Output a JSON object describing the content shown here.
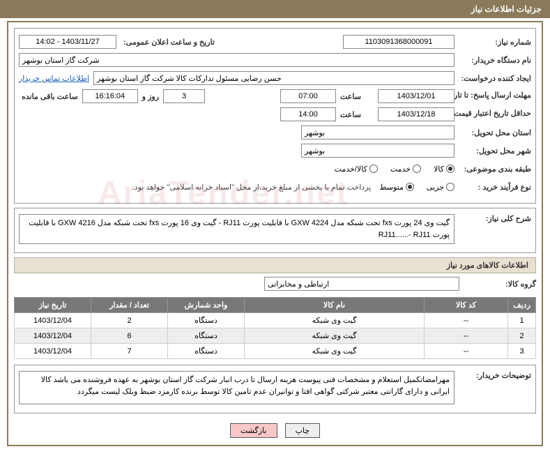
{
  "header": "جزئیات اطلاعات نیاز",
  "labels": {
    "req_no": "شماره نیاز:",
    "announce": "تاریخ و ساعت اعلان عمومی:",
    "buyer_org": "نام دستگاه خریدار:",
    "requester": "ایجاد کننده درخواست:",
    "contact_link": "اطلاعات تماس خریدار",
    "reply_deadline": "مهلت ارسال پاسخ: تا تاریخ:",
    "hour": "ساعت",
    "days_and": "روز و",
    "remaining": "ساعت باقی مانده",
    "price_valid": "حداقل تاریخ اعتبار قیمت: تا تاریخ:",
    "delivery_province": "استان محل تحویل:",
    "delivery_city": "شهر محل تحویل:",
    "subject_class": "طبقه بندی موضوعی:",
    "purchase_type": "نوع فرآیند خرید :",
    "general_desc": "شرح کلی نیاز:",
    "items_section": "اطلاعات کالاهای مورد نیاز",
    "goods_group": "گروه کالا:",
    "buyer_notes": "توضیحات خریدار:"
  },
  "values": {
    "req_no": "1103091368000091",
    "announce": "1403/11/27 - 14:02",
    "buyer_org": "شرکت گاز استان بوشهر",
    "requester": "حسن رضایی مسئول تدارکات کالا شرکت گاز استان بوشهر",
    "reply_date": "1403/12/01",
    "reply_time": "07:00",
    "days_left": "3",
    "time_left": "16:16:04",
    "price_date": "1403/12/18",
    "price_time": "14:00",
    "province": "بوشهر",
    "city": "بوشهر",
    "payment_note": "پرداخت تمام یا بخشی از مبلغ خرید،از محل \"اسناد خزانه اسلامی\" خواهد بود.",
    "general_desc": "گیت وی 24  پورت fxs  تحت شبکه مدل GXW 4224 با قابلیت پورت RJ11 - گیت وی 16  پورت fxs  تحت شبکه مدل GXW 4216 با قابلیت پورت RJ11......-   RJ11",
    "goods_group": "ارتباطی و مخابراتی",
    "buyer_notes": "مهرامضاتکمیل استعلام و مشخصات فنی پیوست هزینه ارسال تا درب انبار شرکت گاز استان بوشهر به عهده فروشنده می باشد کالا ایرانی و دارای گارانتی معتبر شرکتی گواهی افتا و توانیران عدم تامین کالا توسط برنده کارمزد ضبط وبلک لیست میگردد"
  },
  "radios": {
    "class": [
      {
        "label": "کالا",
        "selected": true
      },
      {
        "label": "خدمت",
        "selected": false
      },
      {
        "label": "کالا/خدمت",
        "selected": false
      }
    ],
    "ptype": [
      {
        "label": "جزیی",
        "selected": false
      },
      {
        "label": "متوسط",
        "selected": true
      }
    ]
  },
  "table": {
    "headers": [
      "ردیف",
      "کد کالا",
      "نام کالا",
      "واحد شمارش",
      "تعداد / مقدار",
      "تاریخ نیاز"
    ],
    "rows": [
      [
        "1",
        "--",
        "گیت وی شبکه",
        "دستگاه",
        "2",
        "1403/12/04"
      ],
      [
        "2",
        "--",
        "گیت وی شبکه",
        "دستگاه",
        "6",
        "1403/12/04"
      ],
      [
        "3",
        "--",
        "گیت وی شبکه",
        "دستگاه",
        "7",
        "1403/12/04"
      ]
    ]
  },
  "buttons": {
    "print": "چاپ",
    "back": "بازگشت"
  }
}
